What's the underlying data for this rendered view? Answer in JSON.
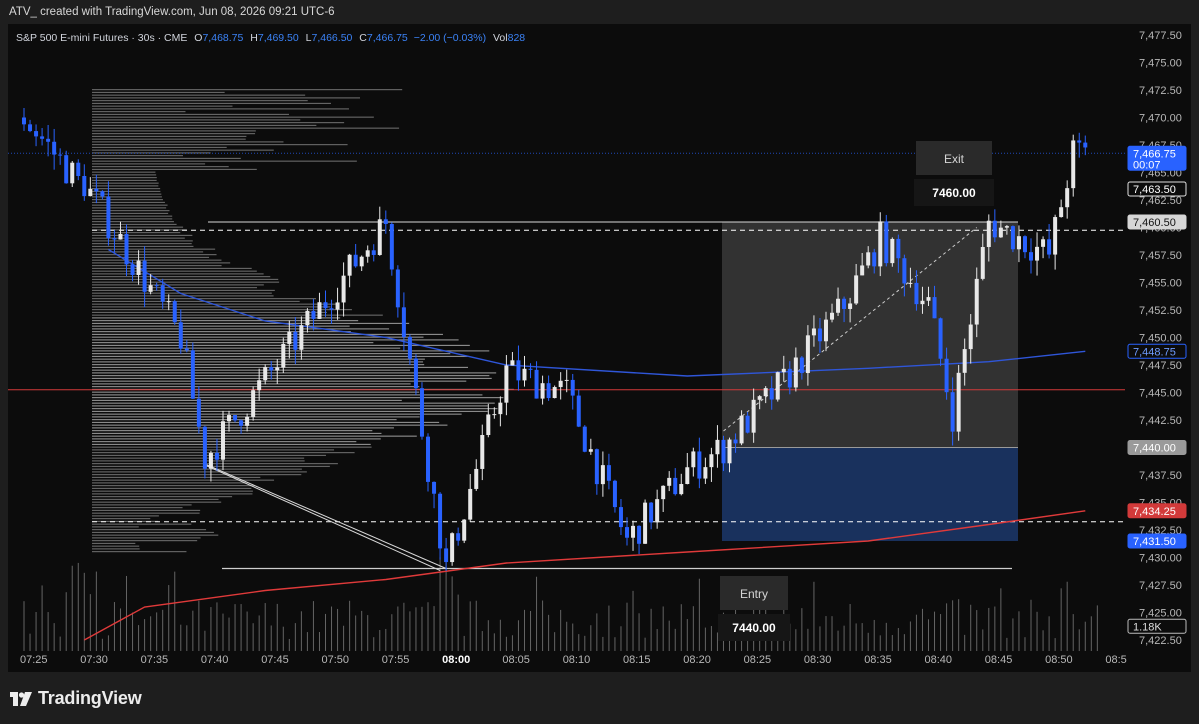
{
  "header": {
    "attribution": "ATV_ created with TradingView.com, Jun 08, 2026 09:21 UTC-6"
  },
  "legend": {
    "symbol": "S&P 500 E-mini Futures · 30s · CME",
    "o_label": "O",
    "o_value": "7,468.75",
    "h_label": "H",
    "h_value": "7,469.50",
    "l_label": "L",
    "l_value": "7,466.50",
    "c_label": "C",
    "c_value": "7,466.75",
    "change": "−2.00 (−0.03%)",
    "vol_label": "Vol",
    "vol_value": "828"
  },
  "position_tool": {
    "exit_label": "Exit",
    "exit_value": "7460.00",
    "entry_label": "Entry",
    "entry_value": "7440.00"
  },
  "price_tags": {
    "last_price": "7,466.75",
    "countdown": "00:07",
    "tag_7463": "7,463.50",
    "tag_7460": "7,460.50",
    "tag_7448": "7,448.75",
    "tag_7440": "7,440.00",
    "tag_7434": "7,434.25",
    "tag_7431": "7,431.50",
    "volume_tag": "1.18K"
  },
  "footer": {
    "brand": "TradingView"
  },
  "colors": {
    "background": "#0c0c0c",
    "bull_candle": "#e8e8e8",
    "bear_candle": "#2962ff",
    "vwap_line": "#2f56d9",
    "lower_band": "#e03a3a",
    "volume_profile": "#9e9e9e",
    "target_zone": "#3a3a3a",
    "stop_zone": "#1b3566"
  },
  "chart_data": {
    "type": "candlestick",
    "title": "S&P 500 E-mini Futures · 30s · CME",
    "y_ticks": [
      "7,477.50",
      "7,475.00",
      "7,472.50",
      "7,470.00",
      "7,467.50",
      "7,465.00",
      "7,462.50",
      "7,460.00",
      "7,457.50",
      "7,455.00",
      "7,452.50",
      "7,450.00",
      "7,447.50",
      "7,445.00",
      "7,442.50",
      "7,440.00",
      "7,437.50",
      "7,435.00",
      "7,432.50",
      "7,430.00",
      "7,427.50",
      "7,425.00",
      "7,422.50"
    ],
    "x_ticks": [
      "07:25",
      "07:30",
      "07:35",
      "07:40",
      "07:45",
      "07:50",
      "07:55",
      "08:00",
      "08:05",
      "08:10",
      "08:15",
      "08:20",
      "08:25",
      "08:30",
      "08:35",
      "08:40",
      "08:45",
      "08:50",
      "08:5"
    ],
    "ylim": [
      7421.5,
      7478.5
    ],
    "grid": false,
    "levels": {
      "exit_target": 7460.0,
      "entry": 7440.0,
      "dashed_upper": 7459.75,
      "dashed_lower": 7433.25,
      "red_horizontal": 7445.25,
      "resistance_line": 7460.5,
      "low_line": 7429.0,
      "last_price": 7466.75
    },
    "anchor_points": [
      {
        "time": "07:30",
        "price": 7464.0
      },
      {
        "time": "07:38",
        "price": 7450.0
      },
      {
        "time": "07:40",
        "price": 7439.0
      },
      {
        "time": "07:47",
        "price": 7449.0
      },
      {
        "time": "07:55",
        "price": 7460.5
      },
      {
        "time": "08:00",
        "price": 7429.0
      },
      {
        "time": "08:05",
        "price": 7447.0
      },
      {
        "time": "08:10",
        "price": 7445.0
      },
      {
        "time": "08:15",
        "price": 7431.5
      },
      {
        "time": "08:20",
        "price": 7438.0
      },
      {
        "time": "08:23",
        "price": 7440.0
      },
      {
        "time": "08:28",
        "price": 7446.0
      },
      {
        "time": "08:33",
        "price": 7453.0
      },
      {
        "time": "08:36",
        "price": 7459.0
      },
      {
        "time": "08:40",
        "price": 7453.0
      },
      {
        "time": "08:42",
        "price": 7443.0
      },
      {
        "time": "08:45",
        "price": 7460.5
      },
      {
        "time": "08:50",
        "price": 7457.5
      },
      {
        "time": "08:52",
        "price": 7466.75
      }
    ],
    "vwap_points": [
      {
        "time": "07:32",
        "price": 7458.0
      },
      {
        "time": "07:38",
        "price": 7454.0
      },
      {
        "time": "07:45",
        "price": 7451.5
      },
      {
        "time": "07:55",
        "price": 7450.0
      },
      {
        "time": "08:05",
        "price": 7447.5
      },
      {
        "time": "08:20",
        "price": 7446.5
      },
      {
        "time": "08:35",
        "price": 7447.2
      },
      {
        "time": "08:45",
        "price": 7447.8
      },
      {
        "time": "08:53",
        "price": 7448.75
      }
    ],
    "lower_band_points": [
      {
        "time": "07:30",
        "price": 7422.5
      },
      {
        "time": "07:35",
        "price": 7425.5
      },
      {
        "time": "07:45",
        "price": 7427.0
      },
      {
        "time": "07:55",
        "price": 7428.0
      },
      {
        "time": "08:05",
        "price": 7429.5
      },
      {
        "time": "08:20",
        "price": 7430.5
      },
      {
        "time": "08:35",
        "price": 7431.5
      },
      {
        "time": "08:45",
        "price": 7433.0
      },
      {
        "time": "08:53",
        "price": 7434.25
      }
    ]
  }
}
